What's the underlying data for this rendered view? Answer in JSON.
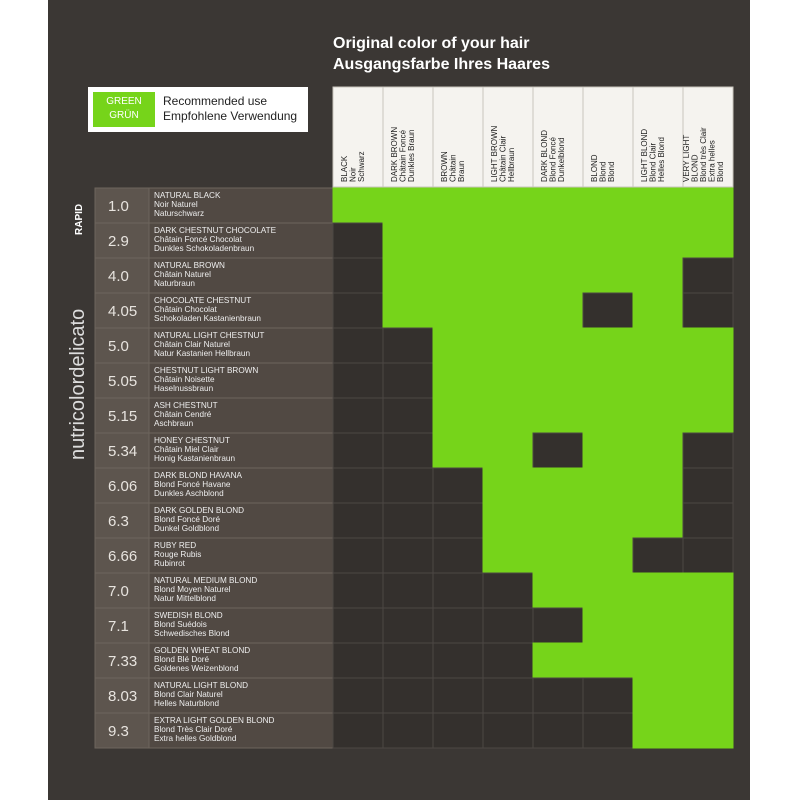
{
  "header": {
    "title": "Original color of your hair",
    "subtitle": "Ausgangsfarbe Ihres Haares"
  },
  "legend": {
    "swatch": [
      "GREEN",
      "GRÜN"
    ],
    "text": [
      "Recommended use",
      "Empfohlene Verwendung"
    ]
  },
  "brand": {
    "name": "nutricolordelicato",
    "tag": "RAPID"
  },
  "columns": [
    [
      "BLACK",
      "Noir",
      "Schwarz"
    ],
    [
      "DARK BROWN",
      "Châtain Foncé",
      "Dunkles Braun"
    ],
    [
      "BROWN",
      "Châtain",
      "Braun"
    ],
    [
      "LIGHT BROWN",
      "Châtain Clair",
      "Hellbraun"
    ],
    [
      "DARK BLOND",
      "Blond Foncé",
      "Dunkelblond"
    ],
    [
      "BLOND",
      "Blond",
      "Blond"
    ],
    [
      "LIGHT BLOND",
      "Blond Clair",
      "Helles Blond"
    ],
    [
      "VERY LIGHT",
      "BLOND",
      "Blond très Clair",
      "Extra helles",
      "Blond"
    ]
  ],
  "rows": [
    {
      "code": "1.0",
      "names": [
        "NATURAL BLACK",
        "Noir Naturel",
        "Naturschwarz"
      ],
      "cells": [
        1,
        1,
        1,
        1,
        1,
        1,
        1,
        1
      ]
    },
    {
      "code": "2.9",
      "names": [
        "DARK CHESTNUT CHOCOLATE",
        "Châtain Foncé Chocolat",
        "Dunkles Schokoladenbraun"
      ],
      "cells": [
        0,
        1,
        1,
        1,
        1,
        1,
        1,
        1
      ]
    },
    {
      "code": "4.0",
      "names": [
        "NATURAL BROWN",
        "Châtain Naturel",
        "Naturbraun"
      ],
      "cells": [
        0,
        1,
        1,
        1,
        1,
        1,
        1,
        0
      ]
    },
    {
      "code": "4.05",
      "names": [
        "CHOCOLATE CHESTNUT",
        "Châtain Chocolat",
        "Schokoladen Kastanienbraun"
      ],
      "cells": [
        0,
        1,
        1,
        1,
        1,
        0,
        1,
        0
      ]
    },
    {
      "code": "5.0",
      "names": [
        "NATURAL LIGHT CHESTNUT",
        "Châtain Clair Naturel",
        "Natur Kastanien Hellbraun"
      ],
      "cells": [
        0,
        0,
        1,
        1,
        1,
        1,
        1,
        1
      ]
    },
    {
      "code": "5.05",
      "names": [
        "CHESTNUT LIGHT BROWN",
        "Châtain Noisette",
        "Haselnussbraun"
      ],
      "cells": [
        0,
        0,
        1,
        1,
        1,
        1,
        1,
        1
      ]
    },
    {
      "code": "5.15",
      "names": [
        "ASH CHESTNUT",
        "Châtain Cendré",
        "Aschbraun"
      ],
      "cells": [
        0,
        0,
        1,
        1,
        1,
        1,
        1,
        1
      ]
    },
    {
      "code": "5.34",
      "names": [
        "HONEY CHESTNUT",
        "Châtain Miel Clair",
        "Honig Kastanienbraun"
      ],
      "cells": [
        0,
        0,
        1,
        1,
        0,
        1,
        1,
        0
      ]
    },
    {
      "code": "6.06",
      "names": [
        "DARK BLOND HAVANA",
        "Blond Foncé Havane",
        "Dunkles Aschblond"
      ],
      "cells": [
        0,
        0,
        0,
        1,
        1,
        1,
        1,
        0
      ]
    },
    {
      "code": "6.3",
      "names": [
        "DARK GOLDEN BLOND",
        "Blond Foncé Doré",
        "Dunkel Goldblond"
      ],
      "cells": [
        0,
        0,
        0,
        1,
        1,
        1,
        1,
        0
      ]
    },
    {
      "code": "6.66",
      "names": [
        "RUBY RED",
        "Rouge Rubis",
        "Rubinrot"
      ],
      "cells": [
        0,
        0,
        0,
        1,
        1,
        1,
        0,
        0
      ]
    },
    {
      "code": "7.0",
      "names": [
        "NATURAL MEDIUM BLOND",
        "Blond Moyen Naturel",
        "Natur Mittelblond"
      ],
      "cells": [
        0,
        0,
        0,
        0,
        1,
        1,
        1,
        1
      ]
    },
    {
      "code": "7.1",
      "names": [
        "SWEDISH BLOND",
        "Blond Suédois",
        "Schwedisches Blond"
      ],
      "cells": [
        0,
        0,
        0,
        0,
        0,
        1,
        1,
        1
      ]
    },
    {
      "code": "7.33",
      "names": [
        "GOLDEN WHEAT BLOND",
        "Blond Blé Doré",
        "Goldenes Weizenblond"
      ],
      "cells": [
        0,
        0,
        0,
        0,
        1,
        1,
        1,
        1
      ]
    },
    {
      "code": "8.03",
      "names": [
        "NATURAL LIGHT BLOND",
        "Blond Clair Naturel",
        "Helles Naturblond"
      ],
      "cells": [
        0,
        0,
        0,
        0,
        0,
        0,
        1,
        1
      ]
    },
    {
      "code": "9.3",
      "names": [
        "EXTRA LIGHT GOLDEN BLOND",
        "Blond Très Clair Doré",
        "Extra helles Goldblond"
      ],
      "cells": [
        0,
        0,
        0,
        0,
        0,
        0,
        1,
        1
      ]
    }
  ]
}
